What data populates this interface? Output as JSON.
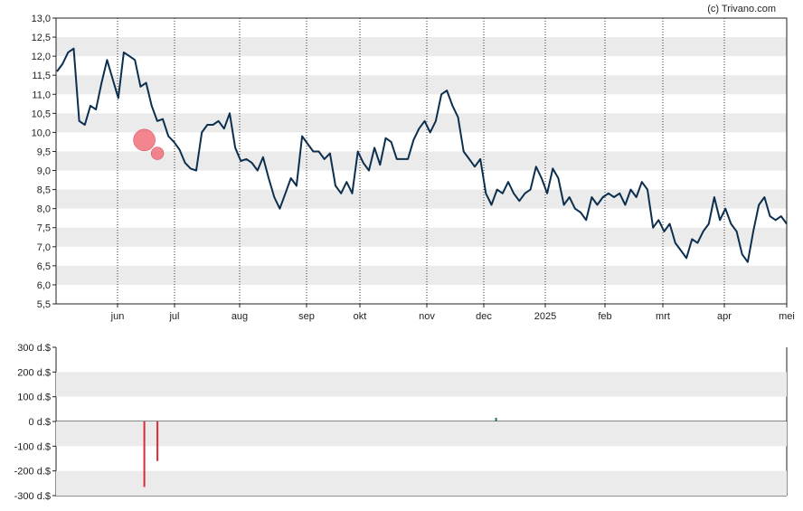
{
  "credit": "(c) Trivano.com",
  "colors": {
    "price_line": "#0d2f4f",
    "band": "#ebebeb",
    "sell_marker": "#f0707a",
    "sell_bar": "#e0283a",
    "buy_bar": "#1a7a4a"
  },
  "chart_data": [
    {
      "type": "line",
      "name": "price",
      "ylim": [
        5.5,
        13.0
      ],
      "y_ticks": [
        "13,0",
        "12,5",
        "12,0",
        "11,5",
        "11,0",
        "10,5",
        "10,0",
        "9,5",
        "9,0",
        "8,5",
        "8,0",
        "7,5",
        "7,0",
        "6,5",
        "6,0",
        "5,5"
      ],
      "x_ticks": [
        "jun",
        "jul",
        "aug",
        "sep",
        "okt",
        "nov",
        "dec",
        "2025",
        "feb",
        "mrt",
        "apr",
        "mei"
      ],
      "grid": "alternating horizontal bands, dotted vertical lines at month boundaries",
      "series": [
        {
          "values": [
            11.6,
            11.8,
            12.1,
            12.2,
            10.3,
            10.2,
            10.7,
            10.6,
            11.3,
            11.9,
            11.4,
            10.9,
            12.1,
            12.0,
            11.9,
            11.2,
            11.3,
            10.7,
            10.3,
            10.35,
            9.9,
            9.75,
            9.55,
            9.2,
            9.05,
            9.0,
            10.0,
            10.2,
            10.2,
            10.3,
            10.1,
            10.5,
            9.6,
            9.25,
            9.3,
            9.2,
            9.0,
            9.35,
            8.8,
            8.3,
            8.0,
            8.4,
            8.8,
            8.6,
            9.9,
            9.7,
            9.5,
            9.5,
            9.3,
            9.45,
            8.6,
            8.4,
            8.7,
            8.4,
            9.5,
            9.2,
            9.0,
            9.6,
            9.15,
            9.85,
            9.75,
            9.3,
            9.3,
            9.3,
            9.8,
            10.1,
            10.3,
            10.0,
            10.3,
            11.0,
            11.1,
            10.7,
            10.4,
            9.5,
            9.3,
            9.1,
            9.3,
            8.4,
            8.1,
            8.5,
            8.4,
            8.7,
            8.4,
            8.2,
            8.4,
            8.5,
            9.1,
            8.8,
            8.4,
            9.05,
            8.8,
            8.1,
            8.3,
            8.0,
            7.9,
            7.7,
            8.3,
            8.1,
            8.3,
            8.4,
            8.3,
            8.4,
            8.1,
            8.5,
            8.3,
            8.7,
            8.5,
            7.5,
            7.7,
            7.4,
            7.6,
            7.1,
            6.9,
            6.7,
            7.2,
            7.1,
            7.4,
            7.6,
            8.3,
            7.7,
            8.0,
            7.6,
            7.4,
            6.8,
            6.6,
            7.4,
            8.1,
            8.3,
            7.8,
            7.7,
            7.8,
            7.6
          ]
        }
      ]
    },
    {
      "type": "bar",
      "name": "transactions",
      "ylim": [
        -300,
        300
      ],
      "y_ticks": [
        "300 d.$",
        "200 d.$",
        "100 d.$",
        "0 d.$",
        "-100 d.$",
        "-200 d.$",
        "-300 d.$"
      ],
      "bars": [
        {
          "month_pos": 0.47,
          "value": -265
        },
        {
          "month_pos": 0.7,
          "value": -160
        },
        {
          "month_pos": 6.2,
          "value": 15
        }
      ],
      "markers": [
        {
          "month_pos": 0.47,
          "price": 9.8,
          "size": "large"
        },
        {
          "month_pos": 0.7,
          "price": 9.45,
          "size": "small"
        }
      ]
    }
  ]
}
